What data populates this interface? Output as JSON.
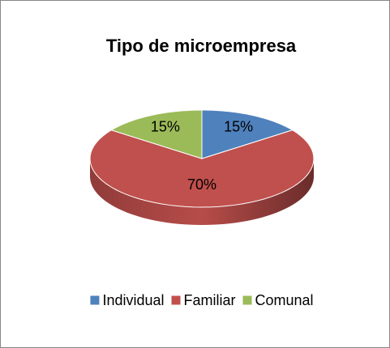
{
  "chart_data": {
    "type": "pie3d",
    "title": "Tipo de microempresa",
    "categories": [
      "Individual",
      "Familiar",
      "Comunal"
    ],
    "values": [
      15,
      70,
      15
    ],
    "value_labels": [
      "15%",
      "70%",
      "15%"
    ],
    "colors": [
      "#4f81bd",
      "#c0504d",
      "#9bbb59"
    ],
    "legend": "bottom"
  }
}
